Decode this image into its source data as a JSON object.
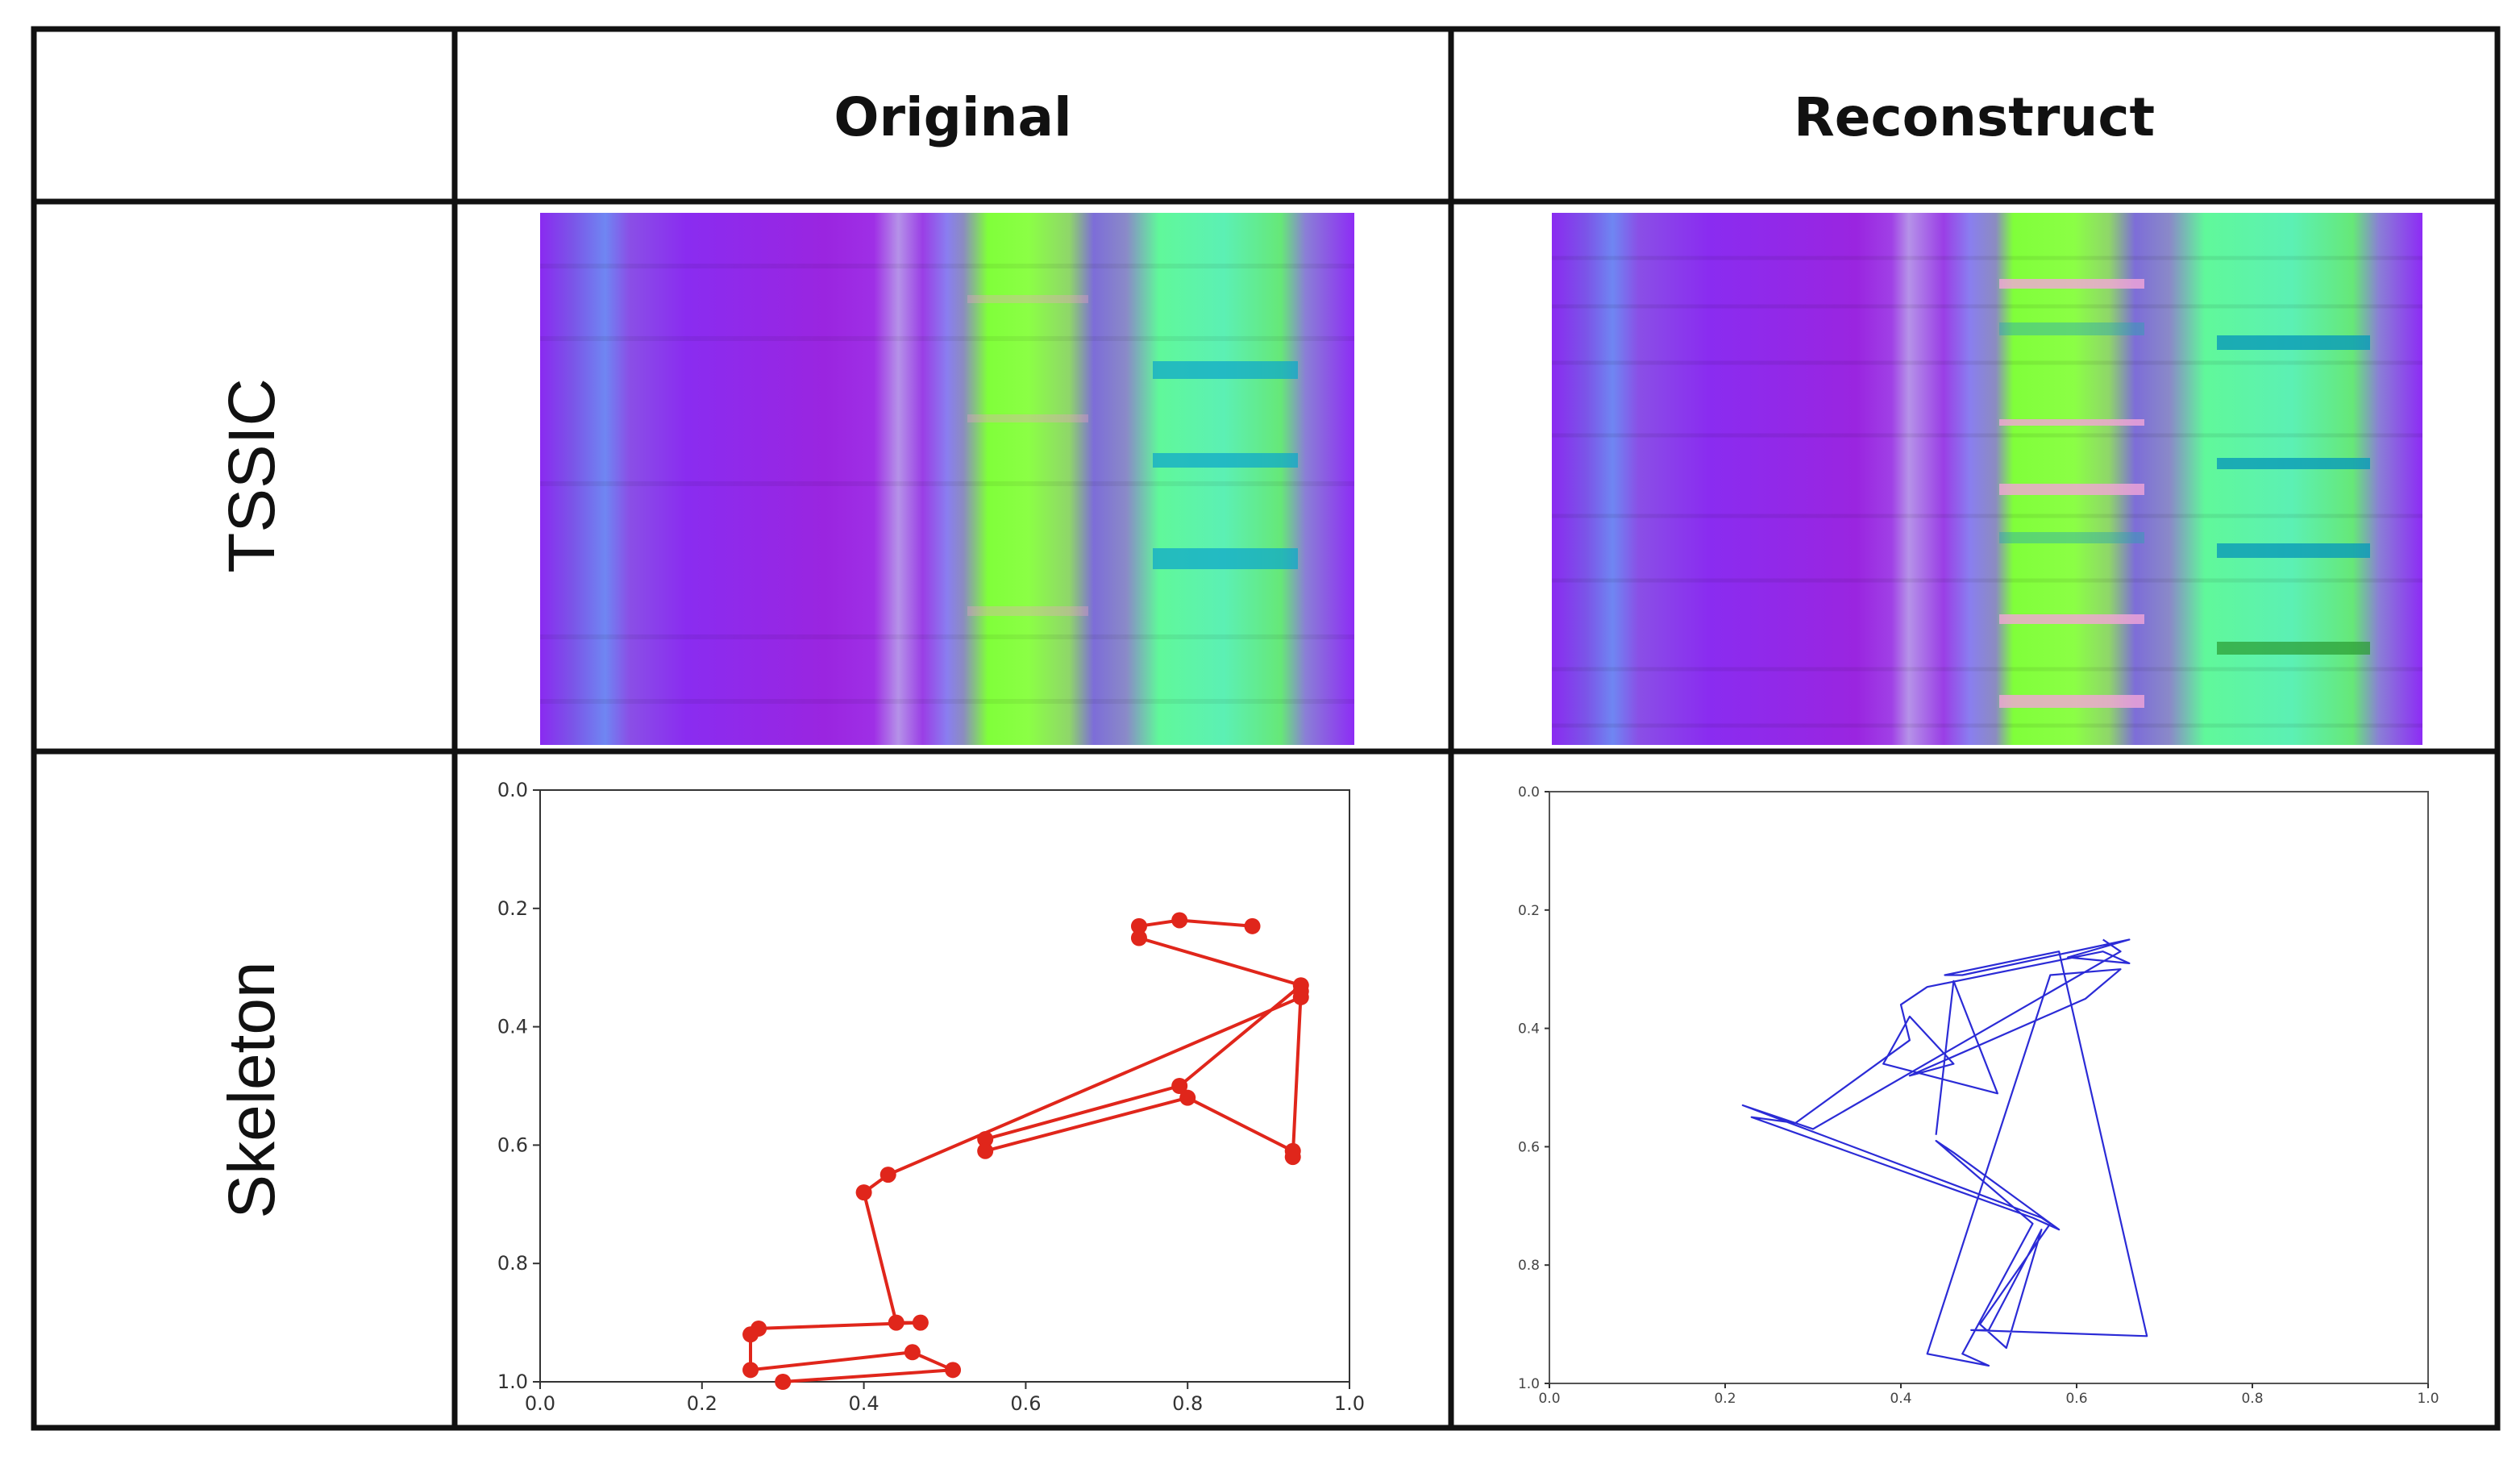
{
  "table": {
    "columns": [
      "Original",
      "Reconstruct"
    ],
    "rows": [
      "TSSIC",
      "Skeleton"
    ]
  },
  "colors": {
    "original_skeleton": "#e0261b",
    "reconstruct_skeleton": "#2b2bd6",
    "grid_border": "#111111"
  },
  "chart_data": [
    {
      "type": "line",
      "title": "Original",
      "series": [
        {
          "name": "Skeleton",
          "color": "#e0261b",
          "markers": true,
          "x": [
            0.88,
            0.79,
            0.74,
            0.74,
            0.94,
            0.79,
            0.55,
            0.55,
            0.8,
            0.93,
            0.93,
            0.94,
            0.94,
            0.43,
            0.4,
            0.44,
            0.47,
            0.27,
            0.26,
            0.26,
            0.46,
            0.51,
            0.3
          ],
          "y": [
            0.23,
            0.22,
            0.23,
            0.25,
            0.33,
            0.5,
            0.59,
            0.61,
            0.52,
            0.61,
            0.62,
            0.34,
            0.35,
            0.65,
            0.68,
            0.9,
            0.9,
            0.91,
            0.92,
            0.98,
            0.95,
            0.98,
            1.0
          ]
        }
      ],
      "xlim": [
        0,
        1
      ],
      "ylim": [
        0,
        1
      ],
      "y_inverted": true,
      "xticks": [
        "0.0",
        "0.2",
        "0.4",
        "0.6",
        "0.8",
        "1.0"
      ],
      "yticks": [
        "0.0",
        "0.2",
        "0.4",
        "0.6",
        "0.8",
        "1.0"
      ]
    },
    {
      "type": "line",
      "title": "Reconstruct",
      "series": [
        {
          "name": "Skeleton",
          "color": "#2b2bd6",
          "markers": false,
          "x": [
            0.63,
            0.65,
            0.3,
            0.22,
            0.56,
            0.57,
            0.49,
            0.52,
            0.56,
            0.5,
            0.48,
            0.68,
            0.58,
            0.45,
            0.47,
            0.66,
            0.59,
            0.66,
            0.63,
            0.43,
            0.4,
            0.41,
            0.28,
            0.23,
            0.55,
            0.58,
            0.46,
            0.44,
            0.55,
            0.47,
            0.5,
            0.43,
            0.57,
            0.65,
            0.61,
            0.41,
            0.46,
            0.41,
            0.38,
            0.51,
            0.46,
            0.44
          ],
          "y": [
            0.25,
            0.27,
            0.57,
            0.53,
            0.72,
            0.73,
            0.9,
            0.94,
            0.74,
            0.91,
            0.91,
            0.92,
            0.27,
            0.31,
            0.31,
            0.25,
            0.28,
            0.29,
            0.27,
            0.33,
            0.36,
            0.42,
            0.56,
            0.55,
            0.72,
            0.74,
            0.61,
            0.59,
            0.73,
            0.95,
            0.97,
            0.95,
            0.31,
            0.3,
            0.35,
            0.48,
            0.46,
            0.38,
            0.46,
            0.51,
            0.32,
            0.58
          ]
        }
      ],
      "xlim": [
        0,
        1
      ],
      "ylim": [
        0,
        1
      ],
      "y_inverted": true,
      "xticks": [
        "0.0",
        "0.2",
        "0.4",
        "0.6",
        "0.8",
        "1.0"
      ],
      "yticks": [
        "0.0",
        "0.2",
        "0.4",
        "0.6",
        "0.8",
        "1.0"
      ]
    }
  ]
}
